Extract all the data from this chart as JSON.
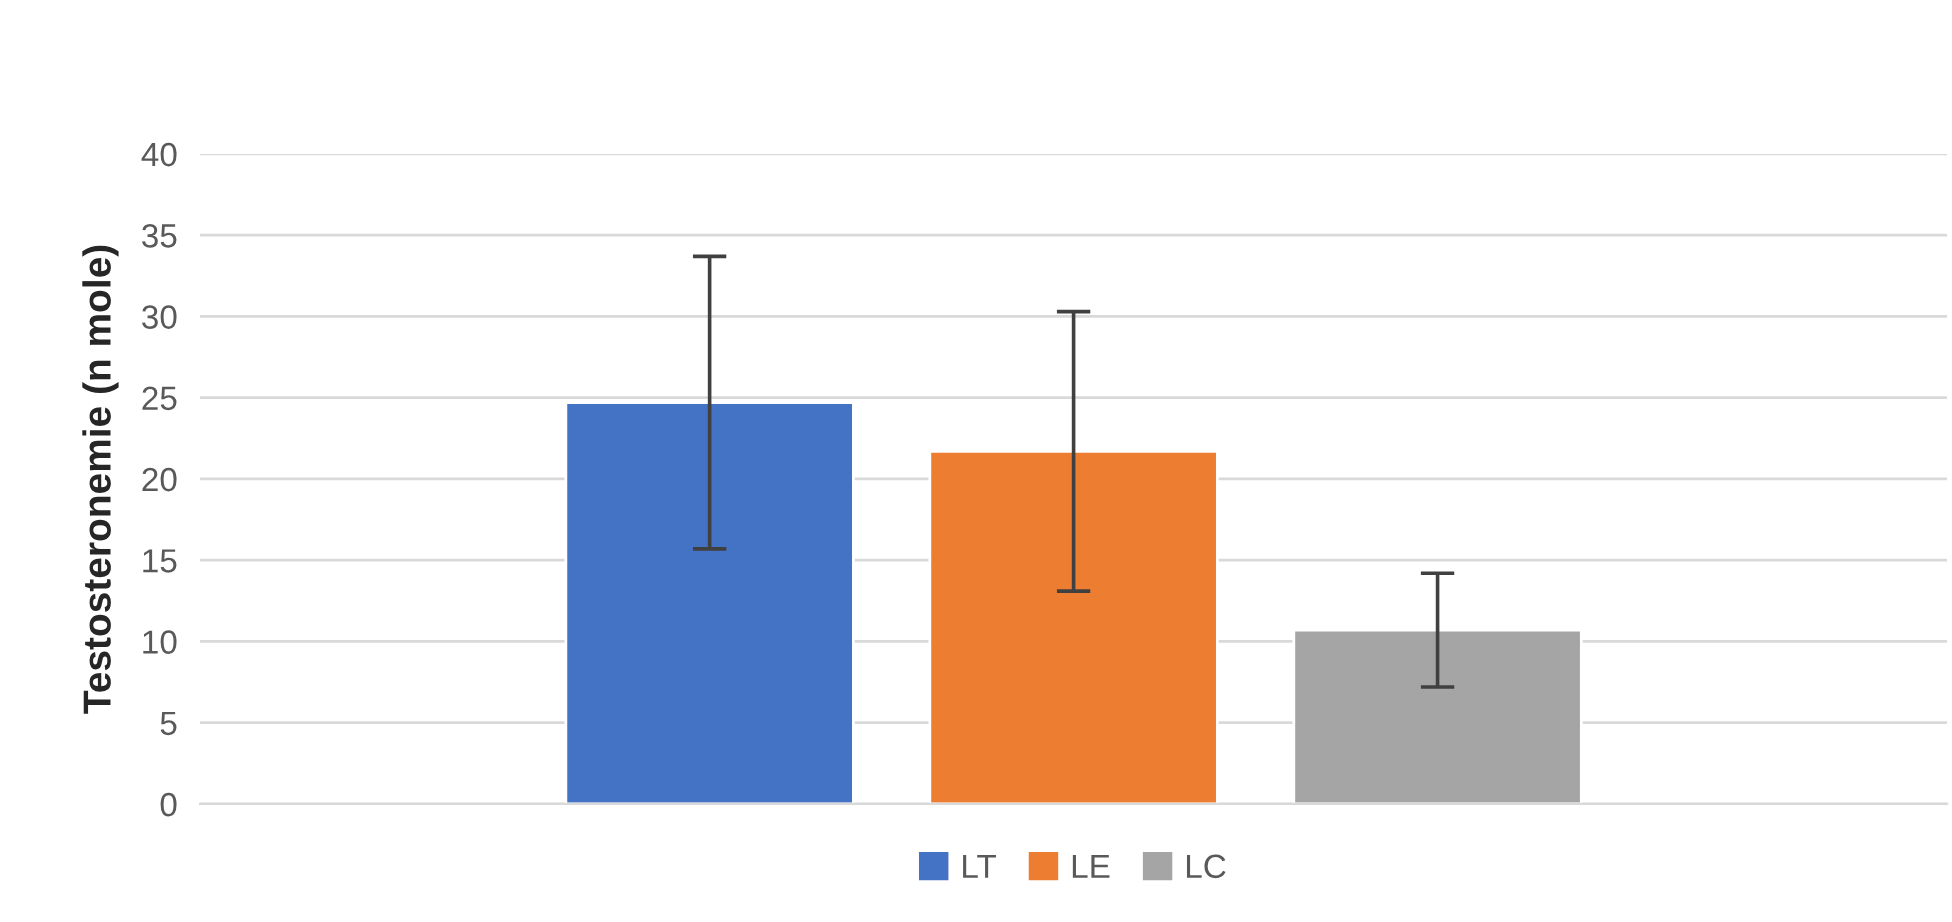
{
  "chart_data": {
    "type": "bar",
    "ylabel": "Testosteronemie (n mole)",
    "categories": [
      null
    ],
    "series": [
      {
        "name": "LT",
        "color": "#4472c4",
        "values": [
          24.7
        ],
        "errors": [
          9.0
        ]
      },
      {
        "name": "LE",
        "color": "#ed7d31",
        "values": [
          21.7
        ],
        "errors": [
          8.6
        ]
      },
      {
        "name": "LC",
        "color": "#a5a5a5",
        "values": [
          10.7
        ],
        "errors": [
          3.5
        ]
      }
    ],
    "ylim": [
      0,
      40
    ],
    "yticks": [
      0,
      5,
      10,
      15,
      20,
      25,
      30,
      35,
      40
    ],
    "grid": "y",
    "legend": "bottom"
  }
}
